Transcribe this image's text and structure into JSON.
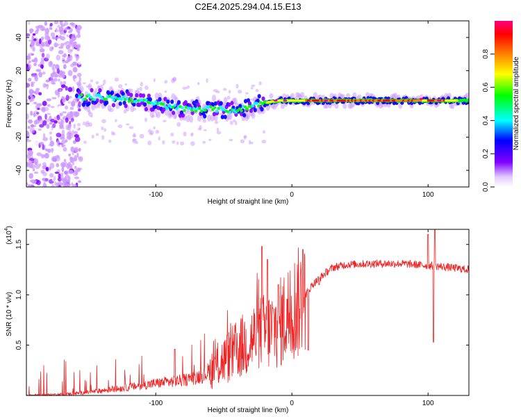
{
  "title": "C2E4.2025.294.04.15.E13",
  "chart_data": [
    {
      "type": "heatmap",
      "title": "C2E4.2025.294.04.15.E13",
      "xlabel": "Height of straight line (km)",
      "ylabel": "Frequency (Hz)",
      "xlim": [
        -195,
        130
      ],
      "ylim": [
        -50,
        50
      ],
      "xticks": [
        -100,
        0,
        100
      ],
      "xtick_labels": [
        "-100",
        "0",
        "100"
      ],
      "yticks": [
        -40,
        -20,
        0,
        20,
        40
      ],
      "ytick_labels": [
        "-40",
        "-20",
        "0",
        "20",
        "40"
      ],
      "colorbar": {
        "label": "Normalized spectral amplitude",
        "range": [
          0.0,
          1.0
        ],
        "ticks": [
          0.0,
          0.2,
          0.4,
          0.6,
          0.8
        ],
        "tick_labels": [
          "0.0",
          "0.2",
          "0.4",
          "0.6",
          "0.8"
        ],
        "colors": [
          "#ffffff",
          "#cc99ff",
          "#8000ff",
          "#0000ff",
          "#00ffff",
          "#00ff00",
          "#ffff00",
          "#ff8000",
          "#ff0000",
          "#ff0080"
        ]
      },
      "band_center": [
        [
          -160,
          4
        ],
        [
          -140,
          4
        ],
        [
          -120,
          3
        ],
        [
          -100,
          0
        ],
        [
          -80,
          -3
        ],
        [
          -60,
          -3
        ],
        [
          -40,
          -4
        ],
        [
          -25,
          0
        ],
        [
          -10,
          2
        ],
        [
          0,
          2
        ],
        [
          20,
          2
        ],
        [
          60,
          2
        ],
        [
          100,
          2
        ],
        [
          130,
          2
        ]
      ],
      "noise_region_x": [
        -195,
        -155
      ]
    },
    {
      "type": "line",
      "xlabel": "Height of straight line (km)",
      "ylabel": "SNR (10 * v/v)",
      "multiplier_label": "(x10",
      "multiplier_exp": "4",
      "xlim": [
        -195,
        130
      ],
      "ylim": [
        0,
        1.65
      ],
      "xticks": [
        -100,
        0,
        100
      ],
      "xtick_labels": [
        "-100",
        "0",
        "100"
      ],
      "yticks": [
        0.5,
        1.0,
        1.5
      ],
      "ytick_labels": [
        "0.5",
        "1.0",
        "1.5"
      ],
      "color": "#ee2222",
      "baseline": [
        [
          -195,
          0.0
        ],
        [
          -170,
          0.01
        ],
        [
          -150,
          0.03
        ],
        [
          -120,
          0.08
        ],
        [
          -100,
          0.12
        ],
        [
          -80,
          0.15
        ],
        [
          -65,
          0.2
        ],
        [
          -55,
          0.3
        ],
        [
          -45,
          0.4
        ],
        [
          -35,
          0.5
        ],
        [
          -25,
          0.6
        ],
        [
          -15,
          0.65
        ],
        [
          -10,
          0.7
        ],
        [
          -5,
          0.78
        ],
        [
          0,
          0.85
        ],
        [
          5,
          0.92
        ],
        [
          10,
          1.0
        ],
        [
          15,
          1.1
        ],
        [
          20,
          1.16
        ],
        [
          25,
          1.22
        ],
        [
          30,
          1.27
        ],
        [
          40,
          1.3
        ],
        [
          60,
          1.31
        ],
        [
          80,
          1.31
        ],
        [
          90,
          1.3
        ],
        [
          100,
          1.29
        ],
        [
          110,
          1.28
        ],
        [
          130,
          1.25
        ]
      ],
      "spikes": [
        [
          -86,
          0.46
        ],
        [
          -22,
          1.48
        ],
        [
          -18,
          1.35
        ],
        [
          -10,
          1.1
        ],
        [
          8,
          1.45
        ],
        [
          12,
          0.45
        ],
        [
          20,
          1.1
        ],
        [
          100,
          1.6
        ],
        [
          104,
          0.53
        ],
        [
          105,
          1.65
        ]
      ]
    }
  ]
}
